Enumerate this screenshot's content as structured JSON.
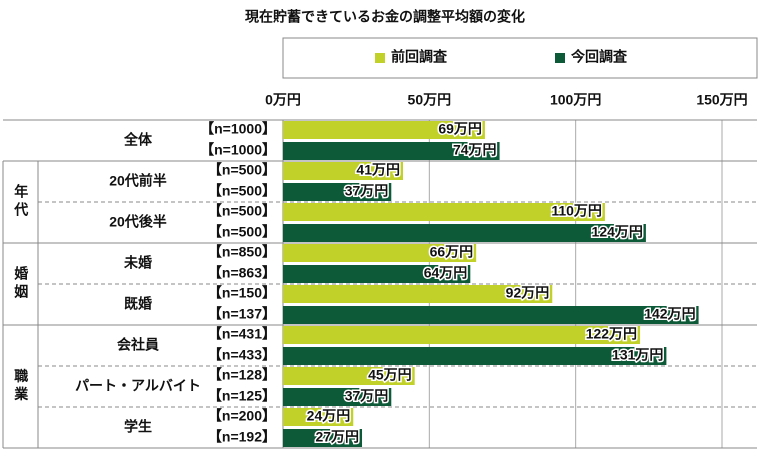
{
  "chart_data": {
    "type": "bar",
    "orientation": "horizontal",
    "title": "現在貯蓄できているお金の調整平均額の変化",
    "categories": [
      "全体",
      "20代前半",
      "20代後半",
      "未婚",
      "既婚",
      "会社員",
      "パート・アルバイト",
      "学生"
    ],
    "category_groups": [
      null,
      "年代",
      "年代",
      "婚姻",
      "婚姻",
      "職業",
      "職業",
      "職業"
    ],
    "series": [
      {
        "name": "前回調査",
        "color": "#c2d12a",
        "values": [
          69,
          41,
          110,
          66,
          92,
          122,
          45,
          24
        ],
        "value_labels": [
          "69万円",
          "41万円",
          "110万円",
          "66万円",
          "92万円",
          "122万円",
          "45万円",
          "24万円"
        ],
        "sample_labels": [
          "【n=1000】",
          "【n=500】",
          "【n=500】",
          "【n=850】",
          "【n=150】",
          "【n=431】",
          "【n=128】",
          "【n=200】"
        ]
      },
      {
        "name": "今回調査",
        "color": "#0d5a38",
        "values": [
          74,
          37,
          124,
          64,
          142,
          131,
          37,
          27
        ],
        "value_labels": [
          "74万円",
          "37万円",
          "124万円",
          "64万円",
          "142万円",
          "131万円",
          "37万円",
          "27万円"
        ],
        "sample_labels": [
          "【n=1000】",
          "【n=500】",
          "【n=500】",
          "【n=863】",
          "【n=137】",
          "【n=433】",
          "【n=125】",
          "【n=192】"
        ]
      }
    ],
    "xlim": [
      0,
      150
    ],
    "xticks": [
      {
        "value": 0,
        "label": "0万円"
      },
      {
        "value": 50,
        "label": "50万円"
      },
      {
        "value": 100,
        "label": "100万円"
      },
      {
        "value": 150,
        "label": "150万円"
      }
    ],
    "grid": true
  }
}
